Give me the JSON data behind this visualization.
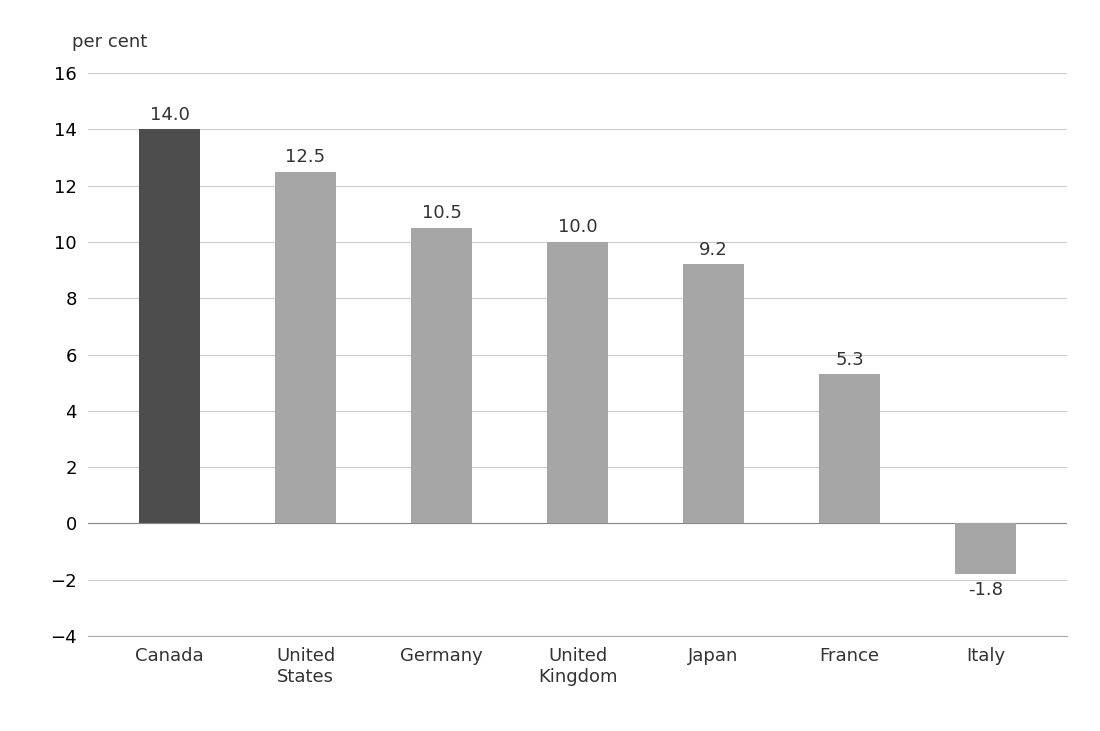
{
  "categories": [
    "Canada",
    "United\nStates",
    "Germany",
    "United\nKingdom",
    "Japan",
    "France",
    "Italy"
  ],
  "values": [
    14.0,
    12.5,
    10.5,
    10.0,
    9.2,
    5.3,
    -1.8
  ],
  "bar_colors": [
    "#4d4d4d",
    "#a6a6a6",
    "#a6a6a6",
    "#a6a6a6",
    "#a6a6a6",
    "#a6a6a6",
    "#a6a6a6"
  ],
  "label_values": [
    "14.0",
    "12.5",
    "10.5",
    "10.0",
    "9.2",
    "5.3",
    "-1.8"
  ],
  "ylabel": "per cent",
  "ylim": [
    -4,
    16
  ],
  "yticks": [
    -4,
    -2,
    0,
    2,
    4,
    6,
    8,
    10,
    12,
    14,
    16
  ],
  "background_color": "#ffffff",
  "grid_color": "#cccccc",
  "bar_width": 0.45,
  "label_fontsize": 13,
  "tick_fontsize": 13,
  "ylabel_fontsize": 13
}
